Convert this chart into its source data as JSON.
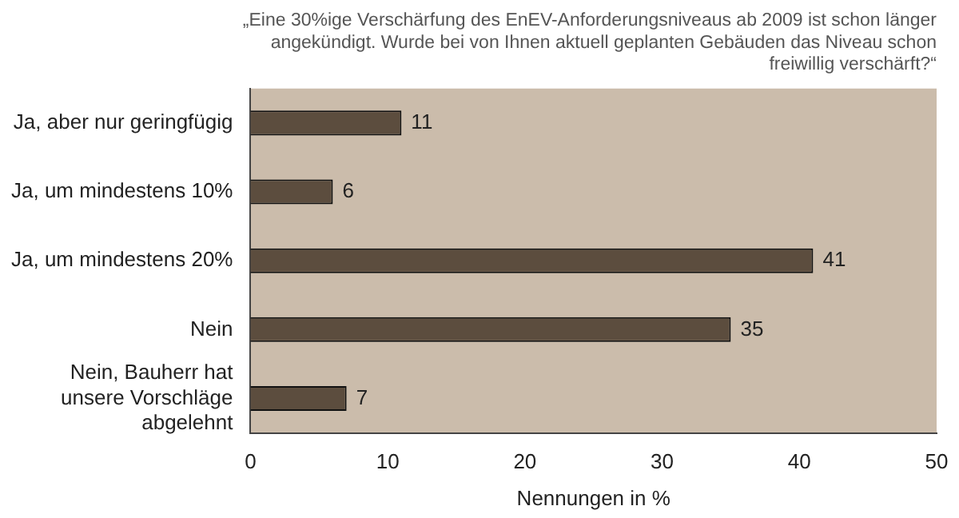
{
  "chart_data": {
    "type": "bar",
    "orientation": "horizontal",
    "title": "„Eine 30%ige Verschärfung des EnEV-Anforderungsniveaus ab 2009 ist schon länger angekündigt. Wurde bei von Ihnen aktuell geplanten Gebäuden das Niveau schon freiwillig verschärft?“",
    "categories": [
      "Ja, aber nur geringfügig",
      "Ja, um mindestens 10%",
      "Ja, um mindestens 20%",
      "Nein",
      "Nein, Bauherr hat unsere Vorschläge abgelehnt"
    ],
    "values": [
      11,
      6,
      41,
      35,
      7
    ],
    "color": "#5c4d3e",
    "xlabel": "Nennungen in %",
    "xlim": [
      0,
      50
    ],
    "xticks": [
      0,
      10,
      20,
      30,
      40,
      50
    ],
    "grid": false,
    "legend": false,
    "data_labels": true
  }
}
